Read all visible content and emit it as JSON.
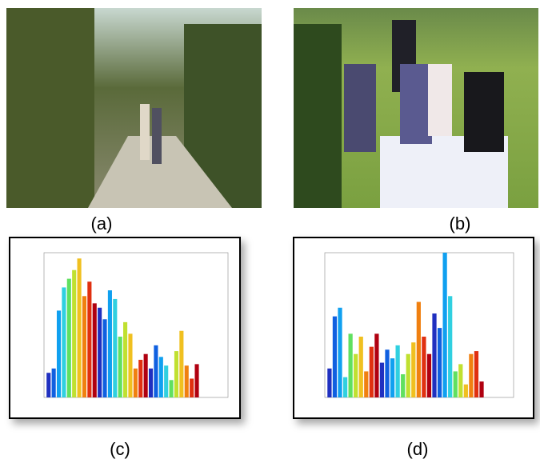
{
  "panels": [
    {
      "label": "(a)"
    },
    {
      "label": "(b)"
    },
    {
      "label": "(c)"
    },
    {
      "label": "(d)"
    }
  ],
  "chart_data": [
    {
      "type": "bar",
      "ylim": [
        0,
        1000
      ],
      "values": [
        170,
        200,
        600,
        760,
        820,
        880,
        960,
        700,
        800,
        650,
        620,
        540,
        740,
        680,
        420,
        520,
        440,
        200,
        260,
        300,
        200,
        360,
        280,
        220,
        120,
        320,
        460,
        220,
        130,
        230
      ],
      "colors": [
        "#2030c0",
        "#1060e0",
        "#10a0f0",
        "#30d0e0",
        "#60e060",
        "#c0e030",
        "#f0c020",
        "#f08010",
        "#e03010",
        "#b00010",
        "#2030c0",
        "#1060e0",
        "#10a0f0",
        "#30d0e0",
        "#60e060",
        "#c0e030",
        "#f0c020",
        "#f08010",
        "#e03010",
        "#b00010",
        "#2030c0",
        "#1060e0",
        "#10a0f0",
        "#30d0e0",
        "#60e060",
        "#c0e030",
        "#f0c020",
        "#f08010",
        "#e03010",
        "#b00010"
      ]
    },
    {
      "type": "bar",
      "ylim": [
        0,
        1000
      ],
      "values": [
        200,
        560,
        620,
        140,
        440,
        300,
        420,
        180,
        350,
        440,
        240,
        330,
        270,
        360,
        160,
        300,
        380,
        660,
        420,
        300,
        580,
        480,
        1000,
        700,
        180,
        230,
        90,
        300,
        320,
        110
      ],
      "colors": [
        "#2030c0",
        "#1060e0",
        "#10a0f0",
        "#30d0e0",
        "#60e060",
        "#c0e030",
        "#f0c020",
        "#f08010",
        "#e03010",
        "#b00010",
        "#2030c0",
        "#1060e0",
        "#10a0f0",
        "#30d0e0",
        "#60e060",
        "#c0e030",
        "#f0c020",
        "#f08010",
        "#e03010",
        "#b00010",
        "#2030c0",
        "#1060e0",
        "#10a0f0",
        "#30d0e0",
        "#60e060",
        "#c0e030",
        "#f0c020",
        "#f08010",
        "#e03010",
        "#b00010"
      ]
    }
  ]
}
